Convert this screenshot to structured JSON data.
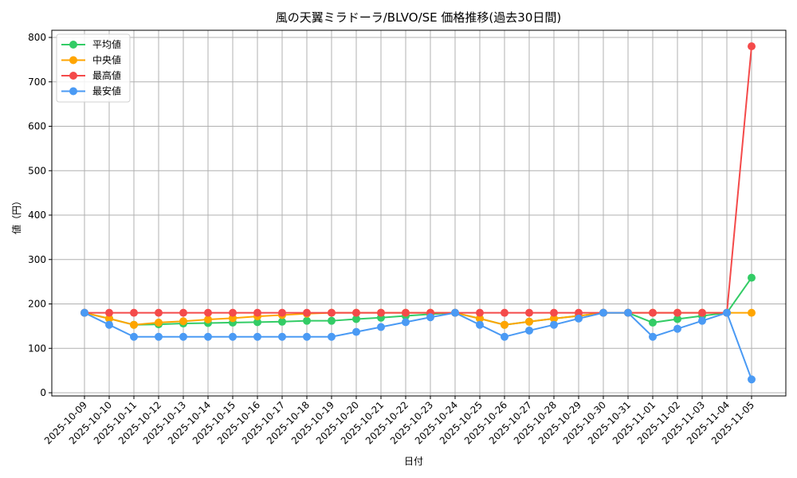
{
  "chart_data": {
    "type": "line",
    "title": "風の天翼ミラドーラ/BLVO/SE 価格推移(過去30日間)",
    "xlabel": "日付",
    "ylabel": "値（円）",
    "ylim": [
      0,
      800
    ],
    "yticks": [
      0,
      100,
      200,
      300,
      400,
      500,
      600,
      700,
      800
    ],
    "grid": true,
    "legend_position": "upper left",
    "categories": [
      "2025-10-09",
      "2025-10-10",
      "2025-10-11",
      "2025-10-12",
      "2025-10-13",
      "2025-10-14",
      "2025-10-15",
      "2025-10-16",
      "2025-10-17",
      "2025-10-18",
      "2025-10-19",
      "2025-10-20",
      "2025-10-21",
      "2025-10-22",
      "2025-10-23",
      "2025-10-24",
      "2025-10-25",
      "2025-10-26",
      "2025-10-27",
      "2025-10-28",
      "2025-10-29",
      "2025-10-30",
      "2025-10-31",
      "2025-11-01",
      "2025-11-02",
      "2025-11-03",
      "2025-11-04",
      "2025-11-05"
    ],
    "series": [
      {
        "name": "平均値",
        "color": "#33cc66",
        "values": [
          180,
          167,
          153,
          154,
          156,
          157,
          158,
          159,
          160,
          162,
          162,
          166,
          169,
          173,
          177,
          180,
          167,
          153,
          160,
          167,
          173,
          180,
          180,
          158,
          166,
          173,
          180,
          259
        ]
      },
      {
        "name": "中央値",
        "color": "#ffa500",
        "values": [
          180,
          167,
          153,
          158,
          161,
          165,
          168,
          172,
          175,
          178,
          180,
          180,
          180,
          180,
          180,
          180,
          167,
          153,
          160,
          167,
          173,
          180,
          180,
          180,
          180,
          180,
          180,
          180
        ]
      },
      {
        "name": "最高値",
        "color": "#f44a4a",
        "values": [
          180,
          180,
          180,
          180,
          180,
          180,
          180,
          180,
          180,
          180,
          180,
          180,
          180,
          180,
          180,
          180,
          180,
          180,
          180,
          180,
          180,
          180,
          180,
          180,
          180,
          180,
          180,
          780
        ]
      },
      {
        "name": "最安値",
        "color": "#4a9af4",
        "values": [
          180,
          153,
          126,
          126,
          126,
          126,
          126,
          126,
          126,
          126,
          126,
          137,
          148,
          159,
          170,
          180,
          153,
          126,
          140,
          153,
          167,
          180,
          180,
          126,
          144,
          162,
          180,
          30
        ]
      }
    ]
  }
}
